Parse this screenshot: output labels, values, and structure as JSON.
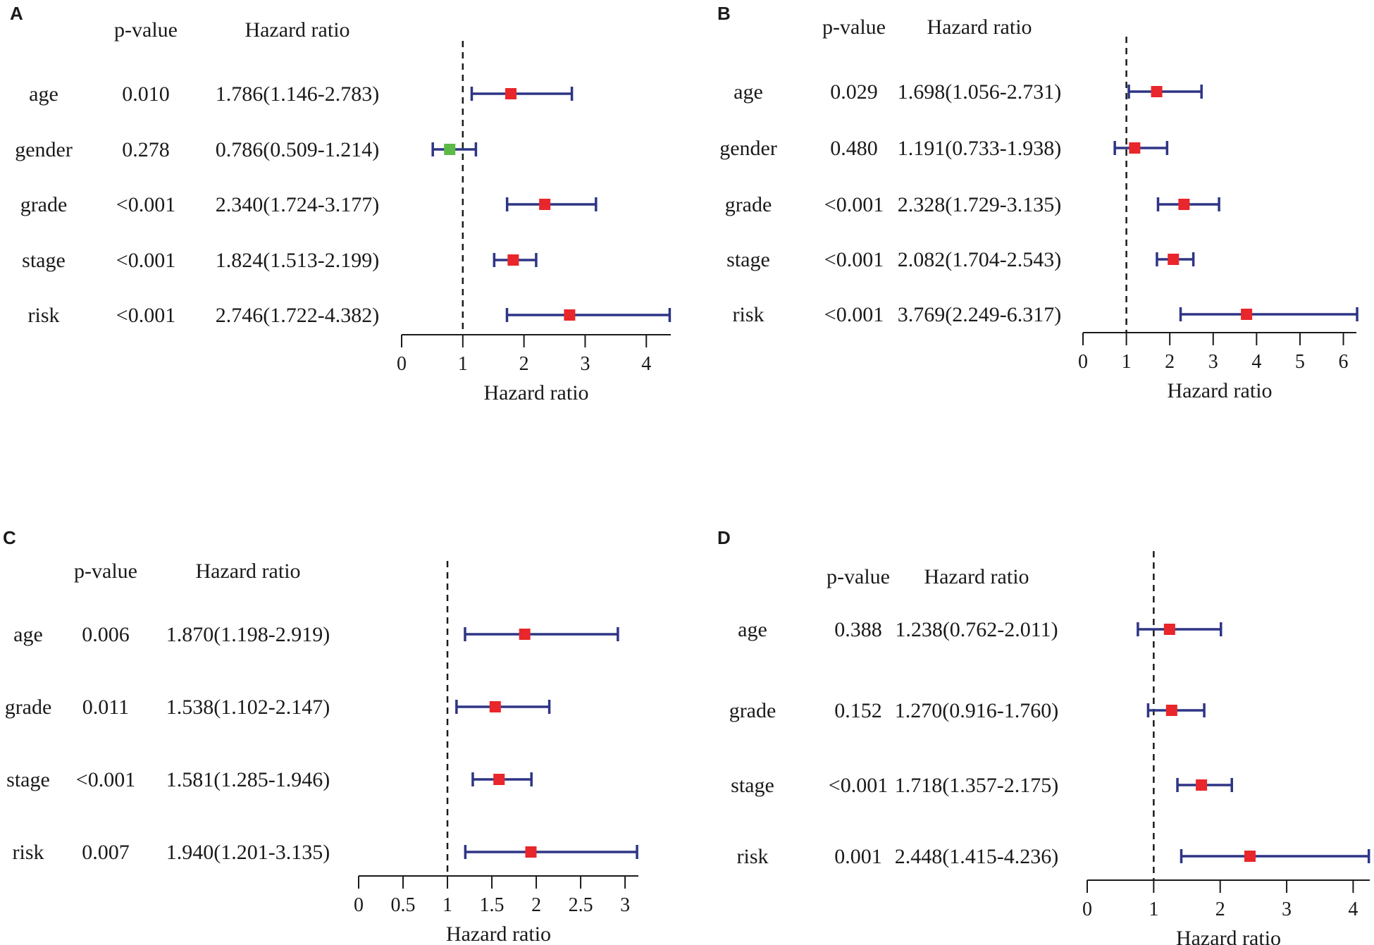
{
  "chart_data": [
    {
      "type": "forest",
      "panel_label": "A",
      "header_pvalue": "p-value",
      "header_hr": "Hazard ratio",
      "xlabel": "Hazard ratio",
      "xlim": [
        0,
        4.4
      ],
      "ticks": [
        "0",
        "1",
        "2",
        "3",
        "4"
      ],
      "tick_values": [
        0,
        1,
        2,
        3,
        4
      ],
      "reference_line": 1,
      "rows": [
        {
          "label": "age",
          "p": "0.010",
          "hr_text": "1.786(1.146-2.783)",
          "hr": 1.786,
          "lo": 1.146,
          "hi": 2.783,
          "color": "#e8262b"
        },
        {
          "label": "gender",
          "p": "0.278",
          "hr_text": "0.786(0.509-1.214)",
          "hr": 0.786,
          "lo": 0.509,
          "hi": 1.214,
          "color": "#5cba47"
        },
        {
          "label": "grade",
          "p": "<0.001",
          "hr_text": "2.340(1.724-3.177)",
          "hr": 2.34,
          "lo": 1.724,
          "hi": 3.177,
          "color": "#e8262b"
        },
        {
          "label": "stage",
          "p": "<0.001",
          "hr_text": "1.824(1.513-2.199)",
          "hr": 1.824,
          "lo": 1.513,
          "hi": 2.199,
          "color": "#e8262b"
        },
        {
          "label": "risk",
          "p": "<0.001",
          "hr_text": "2.746(1.722-4.382)",
          "hr": 2.746,
          "lo": 1.722,
          "hi": 4.382,
          "color": "#e8262b"
        }
      ]
    },
    {
      "type": "forest",
      "panel_label": "B",
      "header_pvalue": "p-value",
      "header_hr": "Hazard ratio",
      "xlabel": "Hazard ratio",
      "xlim": [
        0,
        6.3
      ],
      "ticks": [
        "0",
        "1",
        "2",
        "3",
        "4",
        "5",
        "6"
      ],
      "tick_values": [
        0,
        1,
        2,
        3,
        4,
        5,
        6
      ],
      "reference_line": 1,
      "rows": [
        {
          "label": "age",
          "p": "0.029",
          "hr_text": "1.698(1.056-2.731)",
          "hr": 1.698,
          "lo": 1.056,
          "hi": 2.731,
          "color": "#e8262b"
        },
        {
          "label": "gender",
          "p": "0.480",
          "hr_text": "1.191(0.733-1.938)",
          "hr": 1.191,
          "lo": 0.733,
          "hi": 1.938,
          "color": "#e8262b"
        },
        {
          "label": "grade",
          "p": "<0.001",
          "hr_text": "2.328(1.729-3.135)",
          "hr": 2.328,
          "lo": 1.729,
          "hi": 3.135,
          "color": "#e8262b"
        },
        {
          "label": "stage",
          "p": "<0.001",
          "hr_text": "2.082(1.704-2.543)",
          "hr": 2.082,
          "lo": 1.704,
          "hi": 2.543,
          "color": "#e8262b"
        },
        {
          "label": "risk",
          "p": "<0.001",
          "hr_text": "3.769(2.249-6.317)",
          "hr": 3.769,
          "lo": 2.249,
          "hi": 6.317,
          "color": "#e8262b"
        }
      ]
    },
    {
      "type": "forest",
      "panel_label": "C",
      "header_pvalue": "p-value",
      "header_hr": "Hazard ratio",
      "xlabel": "Hazard ratio",
      "xlim": [
        0,
        3.15
      ],
      "ticks": [
        "0",
        "0.5",
        "1",
        "1.5",
        "2",
        "2.5",
        "3"
      ],
      "tick_values": [
        0,
        0.5,
        1,
        1.5,
        2,
        2.5,
        3
      ],
      "reference_line": 1,
      "rows": [
        {
          "label": "age",
          "p": "0.006",
          "hr_text": "1.870(1.198-2.919)",
          "hr": 1.87,
          "lo": 1.198,
          "hi": 2.919,
          "color": "#e8262b"
        },
        {
          "label": "grade",
          "p": "0.011",
          "hr_text": "1.538(1.102-2.147)",
          "hr": 1.538,
          "lo": 1.102,
          "hi": 2.147,
          "color": "#e8262b"
        },
        {
          "label": "stage",
          "p": "<0.001",
          "hr_text": "1.581(1.285-1.946)",
          "hr": 1.581,
          "lo": 1.285,
          "hi": 1.946,
          "color": "#e8262b"
        },
        {
          "label": "risk",
          "p": "0.007",
          "hr_text": "1.940(1.201-3.135)",
          "hr": 1.94,
          "lo": 1.201,
          "hi": 3.135,
          "color": "#e8262b"
        }
      ]
    },
    {
      "type": "forest",
      "panel_label": "D",
      "header_pvalue": "p-value",
      "header_hr": "Hazard ratio",
      "xlabel": "Hazard ratio",
      "xlim": [
        0,
        4.25
      ],
      "ticks": [
        "0",
        "1",
        "2",
        "3",
        "4"
      ],
      "tick_values": [
        0,
        1,
        2,
        3,
        4
      ],
      "reference_line": 1,
      "rows": [
        {
          "label": "age",
          "p": "0.388",
          "hr_text": "1.238(0.762-2.011)",
          "hr": 1.238,
          "lo": 0.762,
          "hi": 2.011,
          "color": "#e8262b"
        },
        {
          "label": "grade",
          "p": "0.152",
          "hr_text": "1.270(0.916-1.760)",
          "hr": 1.27,
          "lo": 0.916,
          "hi": 1.76,
          "color": "#e8262b"
        },
        {
          "label": "stage",
          "p": "<0.001",
          "hr_text": "1.718(1.357-2.175)",
          "hr": 1.718,
          "lo": 1.357,
          "hi": 2.175,
          "color": "#e8262b"
        },
        {
          "label": "risk",
          "p": "0.001",
          "hr_text": "2.448(1.415-4.236)",
          "hr": 2.448,
          "lo": 1.415,
          "hi": 4.236,
          "color": "#e8262b"
        }
      ]
    }
  ],
  "colors": {
    "whisker": "#2e3585",
    "axis": "#1a1a1a",
    "reference": "#1a1a1a"
  }
}
